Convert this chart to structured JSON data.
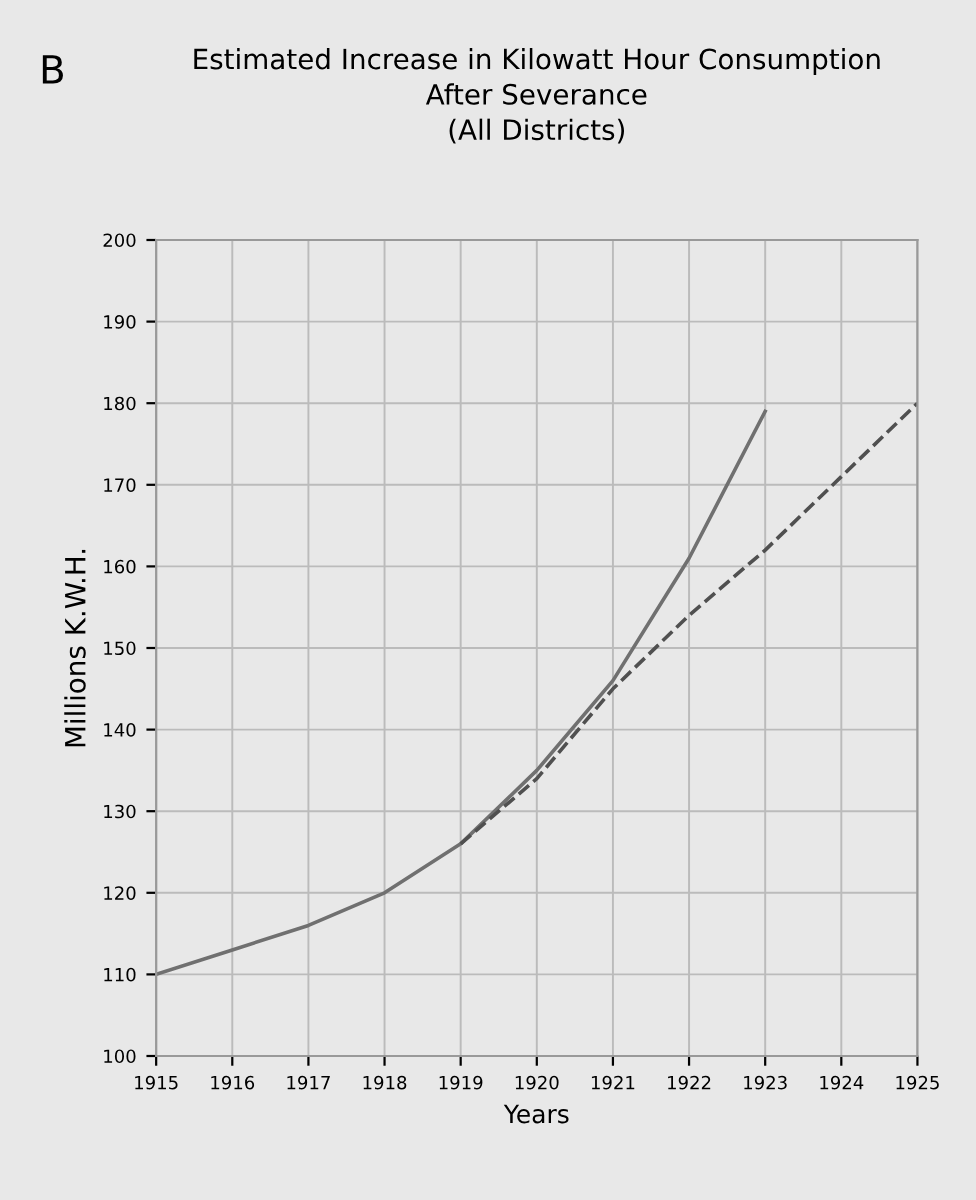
{
  "chart_data": {
    "type": "line",
    "title": "Estimated Increase in Kilowatt Hour Consumption\nAfter Severance\n(All Districts)",
    "xlabel": "Years",
    "ylabel": "Millions K.W.H.",
    "annotations": [
      "B"
    ],
    "x": [
      1915,
      1916,
      1917,
      1918,
      1919,
      1920,
      1921,
      1922,
      1923
    ],
    "series": [
      {
        "color": "#707070",
        "line_style": "solid",
        "values": [
          110,
          113,
          116,
          120,
          126,
          135,
          146,
          161,
          179
        ]
      },
      {
        "color": "#505050",
        "line_style": "dashed",
        "x": [
          1919,
          1920,
          1921,
          1922,
          1923,
          1924,
          1925
        ],
        "values": [
          126,
          134,
          145,
          154,
          162,
          171,
          180
        ]
      }
    ],
    "xlim": [
      1915,
      1925
    ],
    "xticks": [
      1915,
      1916,
      1917,
      1918,
      1919,
      1920,
      1921,
      1922,
      1923,
      1924,
      1925
    ],
    "ylim": [
      100,
      200
    ],
    "yticks": [
      100,
      110,
      120,
      130,
      140,
      150,
      160,
      170,
      180,
      190,
      200
    ],
    "grid": true,
    "marker": "none"
  }
}
